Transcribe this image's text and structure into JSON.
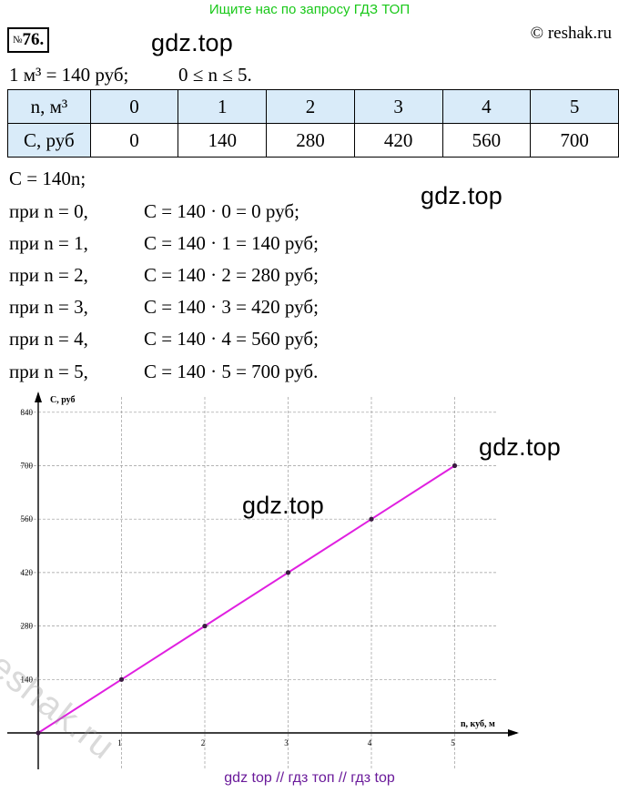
{
  "banner": "Ищите нас по запросу ГДЗ ТОП",
  "problem": {
    "sign": "№",
    "number": "76."
  },
  "copyright": "© reshak.ru",
  "watermarks": [
    "gdz.top",
    "gdz.top",
    "gdz.top",
    "gdz.top"
  ],
  "given": {
    "left": "1 м³ = 140 руб;",
    "right": "0 ≤ n ≤ 5."
  },
  "table": {
    "row1_header": "n, м³",
    "row2_header": "C, руб",
    "n_values": [
      "0",
      "1",
      "2",
      "3",
      "4",
      "5"
    ],
    "c_values": [
      "0",
      "140",
      "280",
      "420",
      "560",
      "700"
    ]
  },
  "formula": "C = 140n;",
  "cases": [
    {
      "left": "при n = 0,",
      "right": "C = 140 · 0 = 0 руб;"
    },
    {
      "left": "при n = 1,",
      "right": "C = 140 · 1 = 140 руб;"
    },
    {
      "left": "при n = 2,",
      "right": "C = 140 · 2 = 280 руб;"
    },
    {
      "left": "при n = 3,",
      "right": "C = 140 · 3 = 420 руб;"
    },
    {
      "left": "при n = 4,",
      "right": "C = 140 · 4 = 560 руб;"
    },
    {
      "left": "при n = 5,",
      "right": "C = 140 · 5 = 700 руб."
    }
  ],
  "reshak_watermark": "reshak.ru",
  "footer": "gdz top  //  гдз топ  //  гдз top",
  "chart_data": {
    "type": "line",
    "xlabel": "n, куб, м",
    "ylabel": "C, руб",
    "x": [
      0,
      1,
      2,
      3,
      4,
      5
    ],
    "y": [
      0,
      140,
      280,
      420,
      560,
      700
    ],
    "xlim": [
      0,
      5.5
    ],
    "ylim": [
      0,
      880
    ],
    "x_ticks": [
      "1",
      "2",
      "3",
      "4",
      "5"
    ],
    "y_ticks": [
      "140",
      "280",
      "420",
      "560",
      "700",
      "840"
    ],
    "grid": true,
    "line_color": "#e020e0",
    "point_color": "#3a1a40"
  }
}
